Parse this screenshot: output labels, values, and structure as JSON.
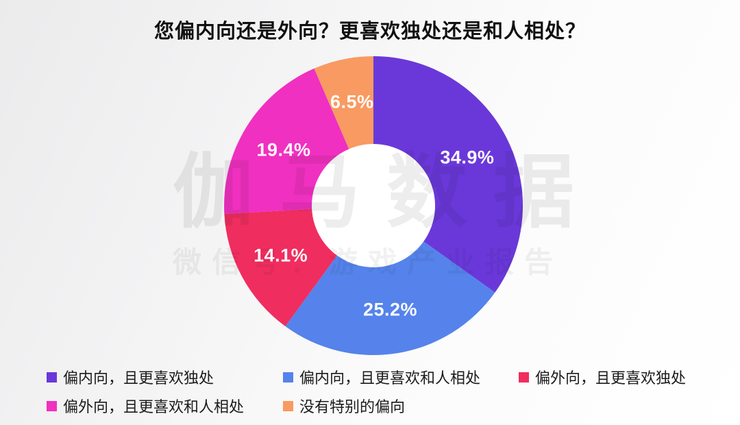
{
  "watermark": {
    "line1": "伽马数据",
    "line2": "微信号：游戏产业报告"
  },
  "chart_data": {
    "type": "pie",
    "donut": true,
    "title": "您偏内向还是外向？更喜欢独处还是和人相处？",
    "start_angle_deg": 0,
    "direction": "clockwise",
    "value_suffix": "%",
    "label_color": "#FFFFFF",
    "legend_position": "bottom",
    "series": [
      {
        "label": "偏内向，且更喜欢独处",
        "value": 34.9,
        "color": "#6A38D9"
      },
      {
        "label": "偏内向，且更喜欢和人相处",
        "value": 25.2,
        "color": "#5583EB"
      },
      {
        "label": "偏外向，且更喜欢独处",
        "value": 14.1,
        "color": "#F02D5F"
      },
      {
        "label": "偏外向，且更喜欢和人相处",
        "value": 19.4,
        "color": "#F030C0"
      },
      {
        "label": "没有特别的偏向",
        "value": 6.5,
        "color": "#F89A62"
      }
    ]
  }
}
